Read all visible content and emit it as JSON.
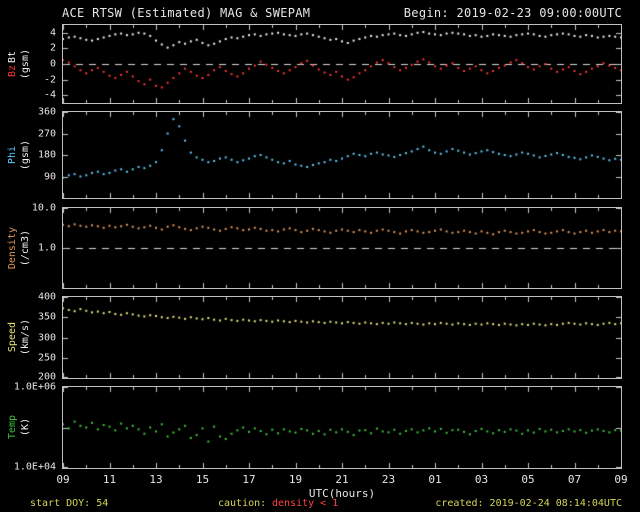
{
  "header": {
    "begin": "Begin: 2019-02-23 09:00:00UTC"
  },
  "footer": {
    "start_doy": "start DOY: 54",
    "caution_label": "caution:",
    "caution_value": "density < 1",
    "created": "created: 2019-02-24 08:14:04UTC"
  },
  "chart_data": {
    "type": "scatter",
    "title": "ACE RTSW (Estimated) MAG & SWEPAM",
    "xlabel": "UTC(hours)",
    "x_start": 9,
    "x_step": 0.25,
    "x_end": 33,
    "grid": false,
    "xticks": {
      "values": [
        9,
        11,
        13,
        15,
        17,
        19,
        21,
        23,
        25,
        27,
        29,
        31,
        33
      ],
      "labels": [
        "09",
        "11",
        "13",
        "15",
        "17",
        "19",
        "21",
        "23",
        "01",
        "03",
        "05",
        "07",
        "09"
      ]
    },
    "panels": [
      {
        "name": "mag",
        "scale": "linear",
        "ylim": [
          -5,
          5
        ],
        "yticks": [
          {
            "v": 4,
            "label": "4"
          },
          {
            "v": 2,
            "label": "2"
          },
          {
            "v": 0,
            "label": "0"
          },
          {
            "v": -2,
            "label": "-2"
          },
          {
            "v": -4,
            "label": "-4"
          }
        ],
        "dashed_y": 0,
        "axis_label_columns": [
          {
            "parts": [
              {
                "text": "Bt",
                "color": "#f2f2f2"
              },
              {
                "text": "Bz",
                "color": "#ff3333"
              }
            ]
          },
          {
            "parts": [
              {
                "text": "(gsm)",
                "color": "#f2f2f2"
              }
            ]
          }
        ],
        "series": [
          {
            "name": "Bt",
            "color": "#f2f2f2",
            "values": [
              3.2,
              3.4,
              3.5,
              3.3,
              3.1,
              3.0,
              3.2,
              3.4,
              3.6,
              3.8,
              3.9,
              3.7,
              3.8,
              4.0,
              3.9,
              3.6,
              3.0,
              2.5,
              2.1,
              2.4,
              2.8,
              2.6,
              2.9,
              3.1,
              2.7,
              2.4,
              2.6,
              2.9,
              3.2,
              3.4,
              3.3,
              3.5,
              3.7,
              3.8,
              3.6,
              3.8,
              3.9,
              4.0,
              3.8,
              3.7,
              3.6,
              3.8,
              3.9,
              3.7,
              3.5,
              3.3,
              3.1,
              3.2,
              2.9,
              2.7,
              3.0,
              3.2,
              3.4,
              3.6,
              3.5,
              3.7,
              3.8,
              3.9,
              3.7,
              3.6,
              3.8,
              4.0,
              4.1,
              3.9,
              3.8,
              3.7,
              3.9,
              4.0,
              3.9,
              3.8,
              3.6,
              3.7,
              3.5,
              3.6,
              3.8,
              3.7,
              3.6,
              3.5,
              3.7,
              3.8,
              3.9,
              3.8,
              3.6,
              3.5,
              3.7,
              3.8,
              3.9,
              3.8,
              3.6,
              3.5,
              3.7,
              3.6,
              3.4,
              3.5,
              3.6,
              3.5,
              3.4
            ]
          },
          {
            "name": "Bz",
            "color": "#ff3333",
            "values": [
              0.5,
              0.2,
              -0.3,
              -0.8,
              -1.2,
              -0.8,
              -0.5,
              -1.0,
              -1.5,
              -1.8,
              -1.4,
              -1.0,
              -1.6,
              -2.2,
              -2.6,
              -2.0,
              -2.8,
              -3.0,
              -2.4,
              -1.8,
              -1.2,
              -0.6,
              -1.0,
              -1.5,
              -1.8,
              -1.4,
              -0.8,
              -0.4,
              -0.9,
              -1.3,
              -1.6,
              -1.2,
              -0.6,
              -0.2,
              0.3,
              -0.1,
              -0.5,
              -0.9,
              -1.2,
              -0.8,
              -0.4,
              0.1,
              0.4,
              -0.2,
              -0.7,
              -1.1,
              -1.4,
              -1.0,
              -1.6,
              -2.0,
              -1.7,
              -1.2,
              -0.8,
              -0.3,
              0.2,
              0.5,
              0.1,
              -0.4,
              -0.8,
              -0.5,
              -0.1,
              0.3,
              0.6,
              0.2,
              -0.3,
              -0.6,
              -0.2,
              0.1,
              -0.5,
              -0.9,
              -0.6,
              -0.3,
              -0.8,
              -1.2,
              -0.9,
              -0.5,
              -0.2,
              0.2,
              0.5,
              0.1,
              -0.4,
              -0.7,
              -0.3,
              0.0,
              -0.6,
              -1.0,
              -0.7,
              -0.4,
              -0.9,
              -1.3,
              -1.0,
              -0.6,
              -0.3,
              0.1,
              -0.2,
              -0.5,
              -0.8
            ]
          }
        ]
      },
      {
        "name": "phi",
        "scale": "linear",
        "ylim": [
          0,
          360
        ],
        "yticks": [
          {
            "v": 360,
            "label": "360"
          },
          {
            "v": 270,
            "label": "270"
          },
          {
            "v": 180,
            "label": "180"
          },
          {
            "v": 90,
            "label": "90"
          }
        ],
        "dashed_y": null,
        "axis_label_columns": [
          {
            "parts": [
              {
                "text": "Phi",
                "color": "#5fc8f5"
              }
            ]
          },
          {
            "parts": [
              {
                "text": "(gsm)",
                "color": "#f2f2f2"
              }
            ]
          }
        ],
        "series": [
          {
            "name": "Phi",
            "color": "#5fc8f5",
            "values": [
              85,
              95,
              100,
              90,
              95,
              105,
              110,
              100,
              105,
              115,
              120,
              110,
              120,
              130,
              125,
              135,
              150,
              200,
              270,
              330,
              300,
              240,
              190,
              170,
              160,
              150,
              155,
              165,
              170,
              160,
              150,
              158,
              165,
              175,
              180,
              170,
              160,
              150,
              145,
              155,
              140,
              135,
              130,
              138,
              145,
              150,
              160,
              155,
              165,
              175,
              185,
              180,
              175,
              185,
              190,
              182,
              178,
              172,
              180,
              188,
              195,
              205,
              215,
              200,
              190,
              185,
              195,
              205,
              198,
              190,
              182,
              188,
              195,
              200,
              192,
              185,
              180,
              175,
              182,
              190,
              185,
              178,
              170,
              176,
              182,
              188,
              180,
              172,
              168,
              162,
              170,
              178,
              172,
              165,
              158,
              164,
              160
            ]
          }
        ]
      },
      {
        "name": "density",
        "scale": "log",
        "ylim": [
          0.1,
          10
        ],
        "yticks": [
          {
            "v": 10,
            "label": "10.0"
          },
          {
            "v": 1,
            "label": "1.0"
          }
        ],
        "dashed_y": 1,
        "axis_label_columns": [
          {
            "parts": [
              {
                "text": "Density",
                "color": "#e0965a"
              }
            ]
          },
          {
            "parts": [
              {
                "text": "(/cm3)",
                "color": "#f2f2f2"
              }
            ]
          }
        ],
        "series": [
          {
            "name": "Density",
            "color": "#e0965a",
            "values": [
              3.8,
              3.5,
              3.9,
              3.6,
              3.4,
              3.7,
              3.5,
              3.2,
              3.6,
              3.3,
              3.5,
              3.8,
              3.4,
              3.1,
              3.3,
              3.6,
              3.2,
              2.9,
              3.4,
              3.7,
              3.3,
              3.0,
              2.8,
              3.1,
              3.4,
              3.2,
              2.9,
              2.7,
              3.0,
              3.3,
              3.1,
              2.8,
              2.9,
              3.2,
              3.0,
              2.7,
              2.8,
              2.6,
              2.9,
              3.1,
              2.8,
              2.5,
              2.7,
              3.0,
              2.8,
              2.6,
              2.4,
              2.7,
              2.9,
              2.7,
              2.5,
              2.8,
              2.6,
              2.4,
              2.7,
              2.9,
              2.7,
              2.5,
              2.3,
              2.6,
              2.8,
              2.6,
              2.4,
              2.5,
              2.7,
              2.9,
              2.6,
              2.4,
              2.5,
              2.7,
              2.5,
              2.3,
              2.6,
              2.4,
              2.2,
              2.5,
              2.7,
              2.5,
              2.3,
              2.4,
              2.6,
              2.8,
              2.5,
              2.3,
              2.4,
              2.6,
              2.8,
              2.5,
              2.3,
              2.5,
              2.7,
              2.4,
              2.6,
              2.8,
              2.5,
              2.7,
              2.6
            ]
          }
        ]
      },
      {
        "name": "speed",
        "scale": "linear",
        "ylim": [
          200,
          400
        ],
        "yticks": [
          {
            "v": 400,
            "label": "400"
          },
          {
            "v": 350,
            "label": "350"
          },
          {
            "v": 300,
            "label": "300"
          },
          {
            "v": 250,
            "label": "250"
          },
          {
            "v": 200,
            "label": "200"
          }
        ],
        "dashed_y": null,
        "axis_label_columns": [
          {
            "parts": [
              {
                "text": "Speed",
                "color": "#e6e67a"
              }
            ]
          },
          {
            "parts": [
              {
                "text": "(km/s)",
                "color": "#f2f2f2"
              }
            ]
          }
        ],
        "series": [
          {
            "name": "Speed",
            "color": "#e6e67a",
            "values": [
              372,
              368,
              365,
              370,
              366,
              362,
              364,
              360,
              363,
              358,
              356,
              360,
              357,
              354,
              352,
              355,
              353,
              350,
              348,
              351,
              349,
              346,
              350,
              347,
              345,
              348,
              344,
              342,
              346,
              343,
              341,
              344,
              342,
              340,
              343,
              341,
              339,
              342,
              340,
              338,
              341,
              339,
              337,
              340,
              338,
              336,
              339,
              337,
              335,
              338,
              336,
              334,
              337,
              335,
              333,
              336,
              334,
              337,
              335,
              333,
              336,
              334,
              332,
              335,
              333,
              336,
              334,
              332,
              335,
              333,
              331,
              334,
              332,
              335,
              333,
              331,
              334,
              332,
              330,
              333,
              331,
              334,
              332,
              330,
              333,
              331,
              334,
              336,
              334,
              332,
              335,
              333,
              331,
              334,
              336,
              333,
              335
            ]
          }
        ]
      },
      {
        "name": "temp",
        "scale": "log",
        "ylim": [
          10000,
          1000000
        ],
        "yticks": [
          {
            "v": 1000000,
            "label": "1.0E+06"
          },
          {
            "v": 100000,
            "label": ""
          },
          {
            "v": 10000,
            "label": "1.0E+04"
          }
        ],
        "dashed_y": null,
        "axis_label_columns": [
          {
            "parts": [
              {
                "text": "Temp",
                "color": "#3fc43f"
              }
            ]
          },
          {
            "parts": [
              {
                "text": "(K)",
                "color": "#f2f2f2"
              }
            ]
          }
        ],
        "series": [
          {
            "name": "Temp",
            "color": "#3fc43f",
            "values": [
              120000,
              95000,
              140000,
              110000,
              100000,
              130000,
              90000,
              115000,
              105000,
              85000,
              125000,
              95000,
              110000,
              90000,
              70000,
              100000,
              80000,
              120000,
              60000,
              75000,
              90000,
              110000,
              55000,
              65000,
              95000,
              45000,
              105000,
              60000,
              52000,
              70000,
              85000,
              100000,
              78000,
              95000,
              82000,
              68000,
              88000,
              72000,
              90000,
              80000,
              75000,
              92000,
              85000,
              70000,
              82000,
              68000,
              88000,
              76000,
              90000,
              78000,
              65000,
              84000,
              86000,
              72000,
              94000,
              80000,
              76000,
              88000,
              70000,
              82000,
              90000,
              76000,
              85000,
              95000,
              80000,
              92000,
              74000,
              86000,
              88000,
              78000,
              68000,
              82000,
              92000,
              80000,
              72000,
              86000,
              78000,
              90000,
              84000,
              70000,
              85000,
              75000,
              92000,
              80000,
              88000,
              76000,
              82000,
              90000,
              80000,
              86000,
              74000,
              84000,
              90000,
              82000,
              76000,
              86000,
              84000
            ]
          }
        ]
      }
    ]
  }
}
